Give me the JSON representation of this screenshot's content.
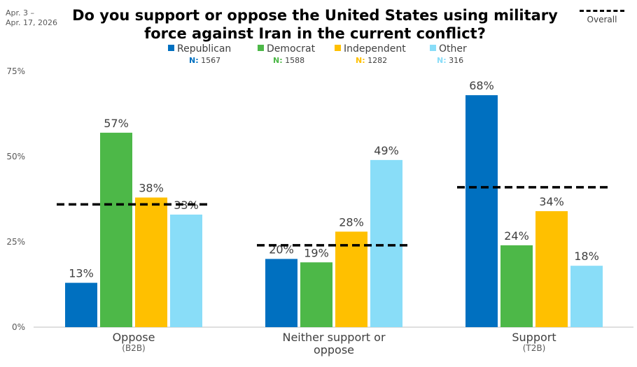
{
  "header": {
    "date_line1": "Apr. 3 –",
    "date_line2": "Apr. 17, 2026",
    "title_line1": "Do you support or oppose the United States using military",
    "title_line2": "force against Iran in the current conflict?"
  },
  "overall_legend_label": "Overall",
  "legend": [
    {
      "name": "Republican",
      "n_label": "N:",
      "n_value": "1567",
      "color": "#0070C0"
    },
    {
      "name": "Democrat",
      "n_label": "N:",
      "n_value": "1588",
      "color": "#4DB848"
    },
    {
      "name": "Independent",
      "n_label": "N:",
      "n_value": "1282",
      "color": "#FFC000"
    },
    {
      "name": "Other",
      "n_label": "N:",
      "n_value": "316",
      "color": "#89DDF8"
    }
  ],
  "chart_data": {
    "type": "bar",
    "categories": [
      {
        "label_lines": [
          "Oppose"
        ],
        "sub": "(B2B)"
      },
      {
        "label_lines": [
          "Neither support or",
          "oppose"
        ],
        "sub": ""
      },
      {
        "label_lines": [
          "Support"
        ],
        "sub": "(T2B)"
      }
    ],
    "series": [
      {
        "name": "Republican",
        "values": [
          13,
          20,
          68
        ],
        "labels": [
          "13%",
          "20%",
          "68%"
        ]
      },
      {
        "name": "Democrat",
        "values": [
          57,
          19,
          24
        ],
        "labels": [
          "57%",
          "19%",
          "24%"
        ]
      },
      {
        "name": "Independent",
        "values": [
          38,
          28,
          34
        ],
        "labels": [
          "38%",
          "28%",
          "34%"
        ]
      },
      {
        "name": "Other",
        "values": [
          33,
          49,
          18
        ],
        "labels": [
          "33%",
          "49%",
          "18%"
        ]
      }
    ],
    "overall": [
      36,
      24,
      41
    ],
    "ylim": [
      0,
      75
    ],
    "yticks": [
      0,
      25,
      50,
      75
    ],
    "ytick_labels": [
      "0%",
      "25%",
      "50%",
      "75%"
    ],
    "grid": false
  }
}
